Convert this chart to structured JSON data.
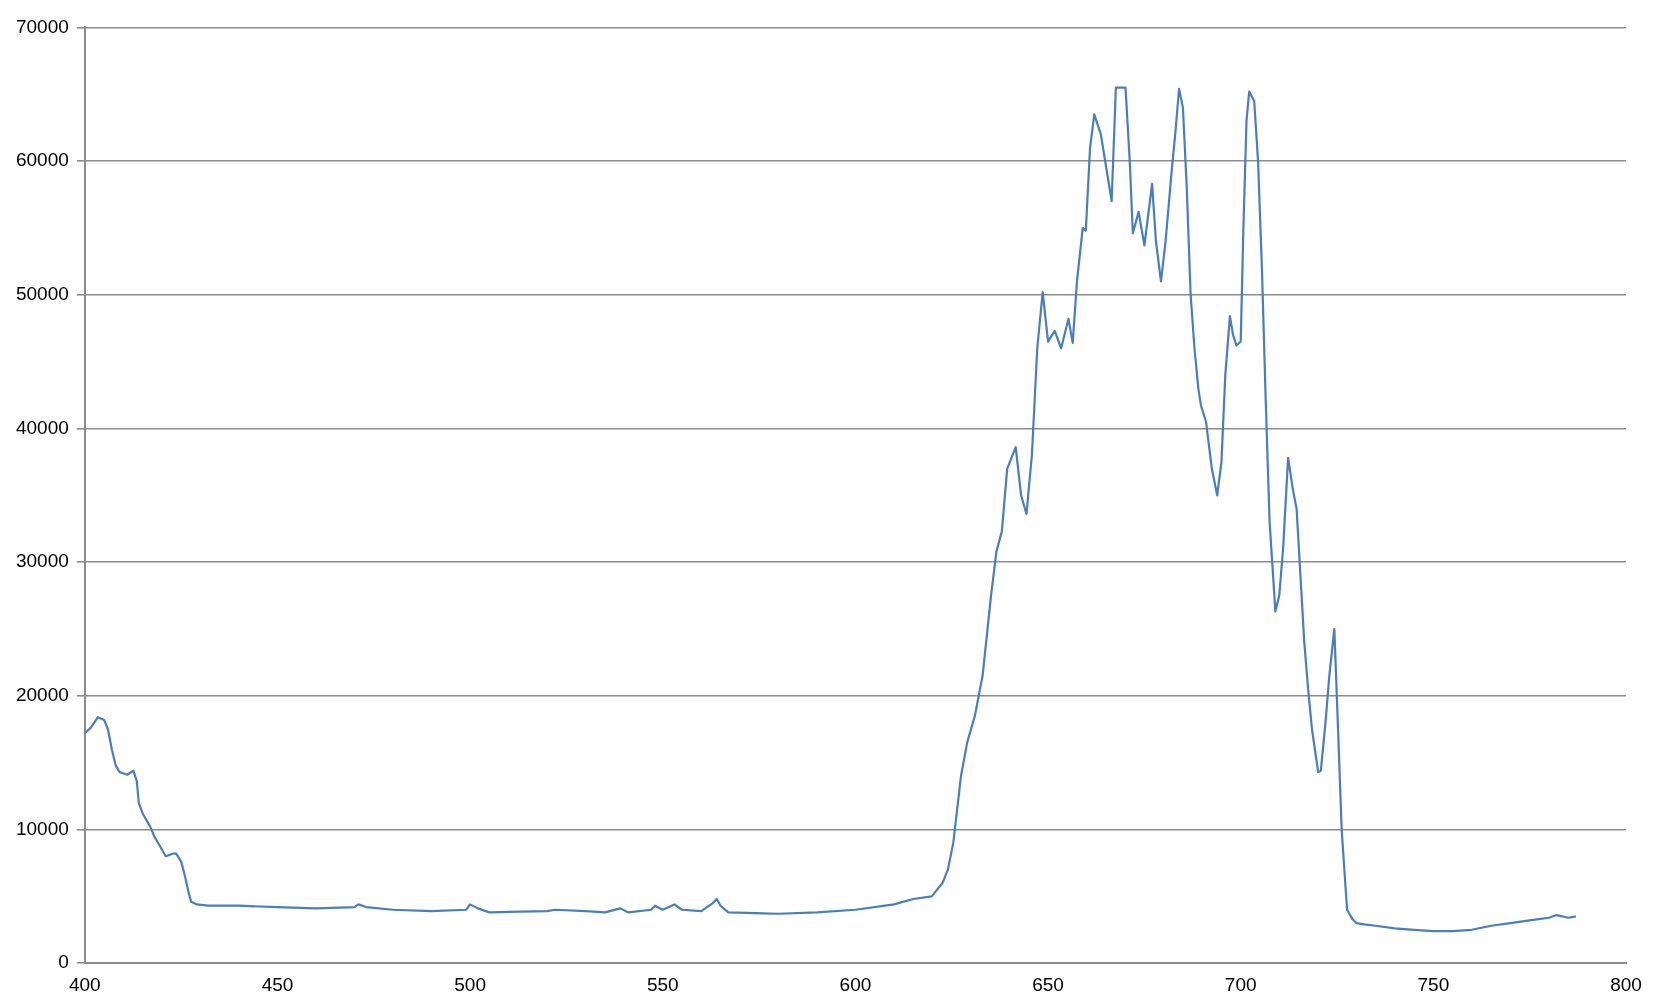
{
  "chart_data": {
    "type": "line",
    "xlim": [
      400,
      800
    ],
    "xticks": [
      400,
      450,
      500,
      550,
      600,
      650,
      700,
      750,
      800
    ],
    "ylim": [
      0,
      70000
    ],
    "yticks": [
      0,
      10000,
      20000,
      30000,
      40000,
      50000,
      60000,
      70000
    ],
    "grid": "y",
    "legend": false,
    "marker": "none",
    "line_style": "solid",
    "series": [
      {
        "color": "#4a7ebb",
        "x": [
          400,
          401.5,
          403.4,
          405,
          406,
          407,
          408,
          409,
          411,
          412.6,
          413.5,
          414,
          415,
          417,
          418,
          420,
          421,
          423,
          423.7,
          425,
          426,
          427,
          427.6,
          429,
          432,
          435,
          440,
          450,
          460,
          470,
          471,
          473,
          480,
          490,
          499,
          500,
          502,
          505,
          520,
          522,
          530,
          535,
          539,
          541,
          547,
          548,
          550,
          553,
          555,
          560,
          563,
          564,
          565,
          567,
          580,
          590,
          600,
          610,
          615,
          619.8,
          622.6,
          624,
          625.4,
          627.4,
          629,
          631,
          633,
          635.2,
          636.6,
          638,
          639.4,
          641.6,
          643,
          644.4,
          645.8,
          647.2,
          648.6,
          650,
          651.7,
          653.4,
          655.3,
          656.4,
          657.5,
          659,
          659.8,
          660.9,
          662,
          663.7,
          665.1,
          666.5,
          667.6,
          670.1,
          671.2,
          672,
          673.5,
          675,
          677,
          678,
          679.3,
          680.5,
          682,
          683,
          684,
          685,
          686,
          687,
          688,
          689,
          689.7,
          691,
          692.5,
          693.9,
          695,
          696,
          697.2,
          698,
          698.9,
          700,
          700.7,
          701.5,
          702.2,
          703.5,
          704.5,
          705.5,
          706.5,
          707.5,
          709,
          710,
          711,
          712.3,
          713.5,
          714.5,
          715.5,
          716.5,
          717.5,
          718.5,
          719.5,
          720.1,
          720.8,
          722,
          723,
          724.3,
          725.2,
          726.2,
          727.6,
          729,
          730,
          732,
          735,
          740,
          745,
          750,
          755,
          760,
          765,
          770,
          775,
          780,
          782,
          785,
          787
        ],
        "values": [
          17200,
          17600,
          18400,
          18200,
          17500,
          16000,
          14800,
          14300,
          14100,
          14400,
          13600,
          12000,
          11200,
          10200,
          9500,
          8500,
          8000,
          8200,
          8200,
          7600,
          6500,
          5200,
          4600,
          4400,
          4300,
          4300,
          4300,
          4200,
          4100,
          4200,
          4400,
          4200,
          4000,
          3900,
          4000,
          4400,
          4100,
          3800,
          3900,
          4000,
          3900,
          3800,
          4100,
          3800,
          4000,
          4300,
          4000,
          4400,
          4000,
          3900,
          4500,
          4800,
          4300,
          3800,
          3700,
          3800,
          4000,
          4400,
          4800,
          5000,
          6000,
          7000,
          9000,
          14000,
          16500,
          18500,
          21500,
          27500,
          30800,
          32300,
          37000,
          38600,
          35000,
          33600,
          38000,
          46000,
          50200,
          46500,
          47300,
          46000,
          48200,
          46400,
          51000,
          55000,
          54800,
          61000,
          63500,
          62000,
          59500,
          57000,
          65500,
          65500,
          60000,
          54600,
          56200,
          53700,
          58300,
          54000,
          51000,
          54000,
          59000,
          62000,
          65400,
          64000,
          58000,
          50000,
          46000,
          43000,
          41700,
          40500,
          37000,
          35000,
          37500,
          44000,
          48400,
          47000,
          46200,
          46500,
          55000,
          63000,
          65200,
          64500,
          60000,
          52000,
          42000,
          33000,
          26300,
          27500,
          31000,
          37800,
          35500,
          34000,
          29000,
          24000,
          20500,
          17500,
          15500,
          14300,
          14400,
          18000,
          21500,
          25000,
          18000,
          10000,
          4000,
          3300,
          3000,
          2900,
          2800,
          2600,
          2500,
          2400,
          2400,
          2500,
          2800,
          3000,
          3200,
          3400,
          3600,
          3400,
          3500
        ]
      }
    ]
  }
}
